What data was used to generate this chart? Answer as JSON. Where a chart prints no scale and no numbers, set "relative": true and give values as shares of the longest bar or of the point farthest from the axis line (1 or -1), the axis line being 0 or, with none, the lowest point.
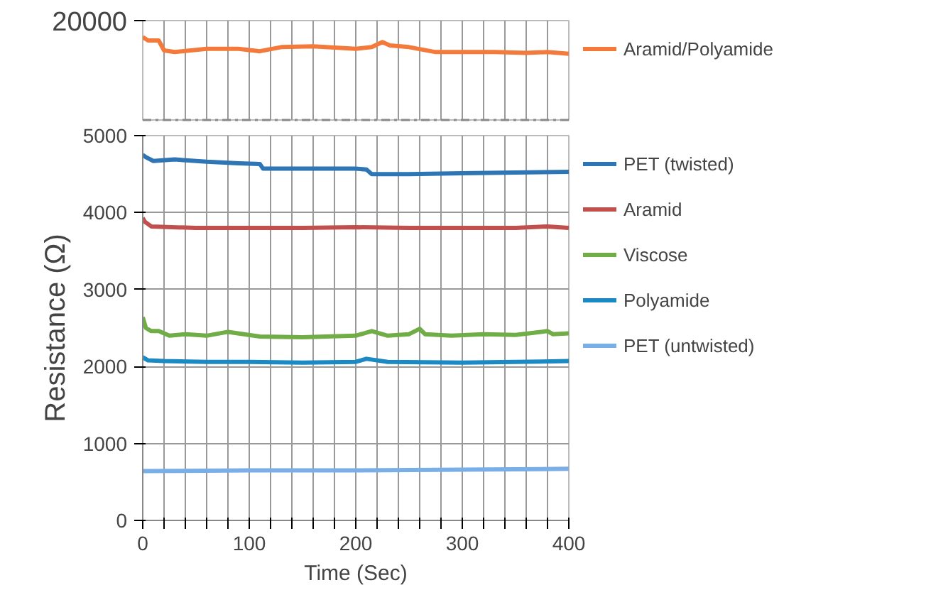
{
  "chart_data": [
    {
      "type": "line",
      "relative": true,
      "annotations": [
        "20000"
      ],
      "xlim": [
        0,
        400
      ],
      "xticks": [
        {
          "value": 0,
          "label": null
        },
        {
          "value": 20,
          "label": null
        },
        {
          "value": 40,
          "label": null
        },
        {
          "value": 60,
          "label": null
        },
        {
          "value": 80,
          "label": null
        },
        {
          "value": 100,
          "label": null
        },
        {
          "value": 120,
          "label": null
        },
        {
          "value": 140,
          "label": null
        },
        {
          "value": 160,
          "label": null
        },
        {
          "value": 180,
          "label": null
        },
        {
          "value": 200,
          "label": null
        },
        {
          "value": 220,
          "label": null
        },
        {
          "value": 240,
          "label": null
        },
        {
          "value": 260,
          "label": null
        },
        {
          "value": 280,
          "label": null
        },
        {
          "value": 300,
          "label": null
        },
        {
          "value": 320,
          "label": null
        },
        {
          "value": 340,
          "label": null
        },
        {
          "value": 360,
          "label": null
        },
        {
          "value": 380,
          "label": null
        },
        {
          "value": 400,
          "label": null
        }
      ],
      "tick_labels": false,
      "grid": "x",
      "legend": "right",
      "series": [
        {
          "name": "Aramid/Polyamide",
          "color": "#f47a3c",
          "x": [
            0,
            5,
            15,
            20,
            30,
            60,
            90,
            110,
            130,
            160,
            200,
            215,
            225,
            232,
            250,
            275,
            300,
            330,
            360,
            380,
            400
          ],
          "values": [
            1.0,
            0.96,
            0.96,
            0.84,
            0.82,
            0.86,
            0.86,
            0.83,
            0.88,
            0.89,
            0.86,
            0.88,
            0.94,
            0.9,
            0.88,
            0.82,
            0.82,
            0.82,
            0.81,
            0.82,
            0.8
          ]
        }
      ]
    },
    {
      "type": "line",
      "xlabel": "Time (Sec)",
      "ylabel": "Resistance (Ω)",
      "xlim": [
        0,
        400
      ],
      "ylim": [
        0,
        5000
      ],
      "yticks": [
        0,
        1000,
        2000,
        3000,
        4000,
        5000
      ],
      "xticks": [
        0,
        {
          "value": 20,
          "label": null
        },
        {
          "value": 40,
          "label": null
        },
        {
          "value": 60,
          "label": null
        },
        {
          "value": 80,
          "label": null
        },
        100,
        {
          "value": 120,
          "label": null
        },
        {
          "value": 140,
          "label": null
        },
        {
          "value": 160,
          "label": null
        },
        {
          "value": 180,
          "label": null
        },
        200,
        {
          "value": 220,
          "label": null
        },
        {
          "value": 240,
          "label": null
        },
        {
          "value": 260,
          "label": null
        },
        {
          "value": 280,
          "label": null
        },
        300,
        {
          "value": 320,
          "label": null
        },
        {
          "value": 340,
          "label": null
        },
        {
          "value": 360,
          "label": null
        },
        {
          "value": 380,
          "label": null
        },
        400
      ],
      "grid": true,
      "legend": "right",
      "series": [
        {
          "name": "PET (twisted)",
          "color": "#2e75b6",
          "x": [
            0,
            3,
            10,
            30,
            60,
            90,
            110,
            113,
            150,
            200,
            210,
            215,
            250,
            300,
            350,
            400
          ],
          "values": [
            4750,
            4720,
            4670,
            4690,
            4660,
            4640,
            4630,
            4570,
            4570,
            4570,
            4560,
            4500,
            4500,
            4510,
            4520,
            4530
          ]
        },
        {
          "name": "Aramid",
          "color": "#c0504d",
          "x": [
            0,
            2,
            8,
            50,
            100,
            150,
            200,
            250,
            300,
            350,
            380,
            400
          ],
          "values": [
            3930,
            3880,
            3820,
            3800,
            3800,
            3800,
            3810,
            3800,
            3800,
            3800,
            3820,
            3800
          ]
        },
        {
          "name": "Viscose",
          "color": "#70ad47",
          "x": [
            0,
            3,
            8,
            15,
            25,
            40,
            60,
            80,
            110,
            150,
            200,
            215,
            230,
            250,
            260,
            265,
            290,
            320,
            350,
            380,
            385,
            400
          ],
          "values": [
            2640,
            2500,
            2460,
            2460,
            2400,
            2420,
            2400,
            2450,
            2390,
            2380,
            2400,
            2460,
            2400,
            2420,
            2490,
            2420,
            2400,
            2420,
            2410,
            2460,
            2420,
            2430
          ]
        },
        {
          "name": "Polyamide",
          "color": "#1b8ac4",
          "x": [
            0,
            5,
            20,
            60,
            100,
            150,
            200,
            210,
            230,
            300,
            350,
            400
          ],
          "values": [
            2120,
            2080,
            2070,
            2060,
            2060,
            2050,
            2060,
            2100,
            2060,
            2050,
            2060,
            2070
          ]
        },
        {
          "name": "PET (untwisted)",
          "color": "#7aaee6",
          "x": [
            0,
            100,
            200,
            300,
            400
          ],
          "values": [
            640,
            650,
            650,
            660,
            670
          ]
        }
      ]
    }
  ]
}
